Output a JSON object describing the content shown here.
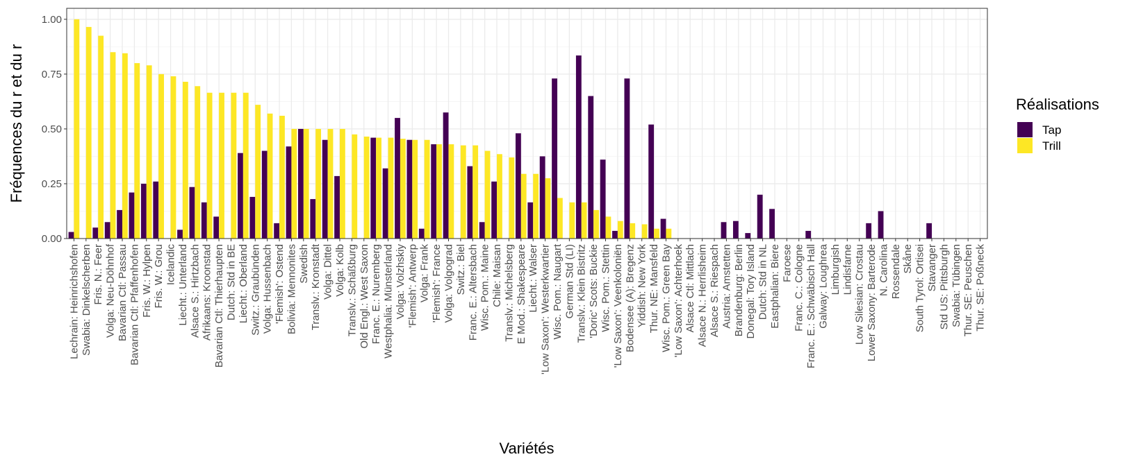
{
  "chart_data": {
    "type": "bar",
    "xlabel": "Variétés",
    "ylabel": "Fréquences du r et du r",
    "ylim": [
      0,
      1.05
    ],
    "yticks": [
      0.0,
      0.25,
      0.5,
      0.75,
      1.0
    ],
    "ytick_labels": [
      "0.00",
      "0.25",
      "0.50",
      "0.75",
      "1.00"
    ],
    "grid": true,
    "legend": {
      "title": "Réalisations",
      "position": "right"
    },
    "colors": {
      "Tap": "#440154",
      "Trill": "#FDE725"
    },
    "categories": [
      "Lechrain: Heinrichshofen",
      "Swabia: Dinkelscherben",
      "Fris. N.: Feer",
      "Volga: Neu-Döhnhof",
      "Bavarian Ctl: Passau",
      "Bavarian Ctl: Pfaffenhofen",
      "Fris. W.: Hylpen",
      "Fris. W.: Grou",
      "Icelandic",
      "Liecht.: Unterland",
      "Alsace S.: Hirtzbach",
      "Afrikaans: Kroonstad",
      "Bavarian Ctl: Thierhaupten",
      "Dutch: Std in BE",
      "Liecht.: Oberland",
      "Switz.: Graubünden",
      "Volga: Hussenbach",
      "'Flemish': Ostend",
      "Bolivia: Mennonites",
      "Swedish",
      "Translv.: Kronstadt",
      "Volga: Dittel",
      "Volga: Kolb",
      "Translv.: Schäßburg",
      "Old Engl.: West Saxon",
      "Franc. E.: Nuremberg",
      "Westphalia: Münsterland",
      "Volga: Volzhskiy",
      "'Flemish': Antwerp",
      "Volga: Frank",
      "'Flemish': France",
      "Volga: Volgograd",
      "Switz.: Biel",
      "Franc. E.: Altersbach",
      "Wisc. Pom.: Maine",
      "Chile: Maisan",
      "Translv.: Michelsberg",
      "E Mod.: Shakespeare",
      "Liecht.: Walser",
      "'Low Saxon': Westerkwartier",
      "Wisc. Pom.: Naugart",
      "German Std (LI)",
      "Translv.: Klein Bistritz",
      "'Doric' Scots: Buckie",
      "Wisc. Pom.: Stettin",
      "'Low Saxon': Veenkoloniën",
      "Bodensee (A): Bregenz",
      "Yiddish: New York",
      "Thur. NE: Mansfeld",
      "Wisc. Pom.: Green Bay",
      "'Low Saxon': Achterhoek",
      "Alsace Ctl: Mittlach",
      "Alsace N.: Herrlisheim",
      "Alsace S.: Riespach",
      "Austria: Amstetten",
      "Brandenburg: Berlin",
      "Donegal: Tory Island",
      "Dutch: Std in NL",
      "Eastphalian: Biere",
      "Faroese",
      "Franc. C.: Cologne",
      "Franc. E.: Schwäbisch Hall",
      "Galway: Loughrea",
      "Limburgish",
      "Lindisfarne",
      "Low Silesian: Crostau",
      "Lower Saxony: Barterode",
      "N. Carolina",
      "Rossendale",
      "Skåne",
      "South Tyrol: Ortisei",
      "Stavanger",
      "Std US: Pittsburgh",
      "Swabia: Tübingen",
      "Thur. SE: Peuschen",
      "Thur. SE: Poßneck"
    ],
    "series": [
      {
        "name": "Tap",
        "values": [
          0.03,
          0,
          0.05,
          0.075,
          0.13,
          0.21,
          0.25,
          0.26,
          0,
          0.04,
          0.235,
          0.165,
          0.1,
          0,
          0.39,
          0.19,
          0.4,
          0.07,
          0.42,
          0.5,
          0.18,
          0.45,
          0.285,
          0,
          0,
          0.46,
          0.32,
          0.55,
          0.45,
          0.045,
          0.43,
          0.575,
          0,
          0.33,
          0.075,
          0.26,
          0,
          0.48,
          0.165,
          0.375,
          0.73,
          0,
          0.835,
          0.65,
          0.36,
          0.035,
          0.73,
          0,
          0.52,
          0.09,
          0,
          0,
          0,
          0,
          0.075,
          0.08,
          0.025,
          0.2,
          0.135,
          0,
          0,
          0.035,
          0,
          0,
          0,
          0,
          0.07,
          0.125,
          0,
          0,
          0,
          0.07,
          0,
          0,
          0,
          0
        ]
      },
      {
        "name": "Trill",
        "values": [
          1.0,
          0.965,
          0.925,
          0.85,
          0.845,
          0.8,
          0.79,
          0.75,
          0.74,
          0.715,
          0.695,
          0.665,
          0.665,
          0.665,
          0.665,
          0.61,
          0.57,
          0.56,
          0.5,
          0.5,
          0.5,
          0.5,
          0.5,
          0.475,
          0.465,
          0.46,
          0.46,
          0.455,
          0.45,
          0.45,
          0.43,
          0.43,
          0.425,
          0.425,
          0.4,
          0.385,
          0.37,
          0.295,
          0.295,
          0.275,
          0.185,
          0.165,
          0.165,
          0.13,
          0.1,
          0.08,
          0.07,
          0.065,
          0.045,
          0.045,
          0,
          0,
          0,
          0,
          0,
          0,
          0,
          0,
          0,
          0,
          0,
          0,
          0,
          0,
          0,
          0,
          0,
          0,
          0,
          0,
          0,
          0,
          0,
          0,
          0,
          0
        ]
      }
    ]
  }
}
